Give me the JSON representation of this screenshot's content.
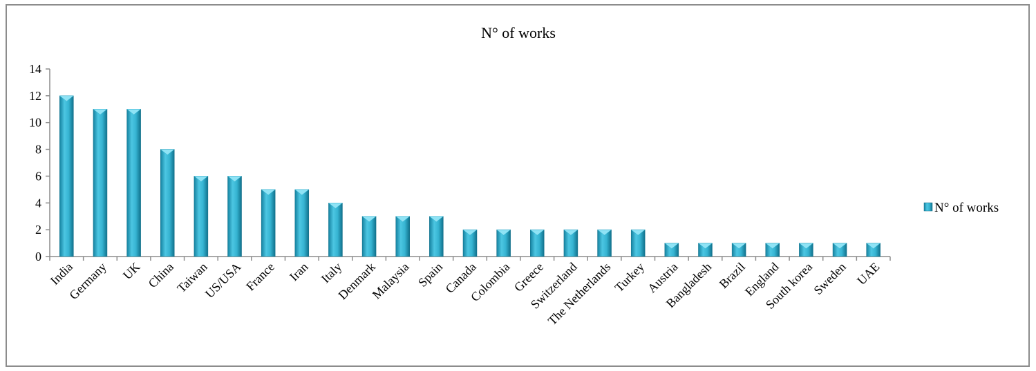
{
  "chart_data": {
    "type": "bar",
    "title": "N° of works",
    "xlabel": "",
    "ylabel": "",
    "ylim": [
      0,
      14
    ],
    "yticks": [
      0,
      2,
      4,
      6,
      8,
      10,
      12,
      14
    ],
    "grid": false,
    "legend": {
      "position": "right"
    },
    "categories": [
      "India",
      "Germany",
      "UK",
      "China",
      "Taiwan",
      "US/USA",
      "France",
      "Iran",
      "Italy",
      "Denmark",
      "Malaysia",
      "Spain",
      "Canada",
      "Colombia",
      "Greece",
      "Switzerland",
      "The Netherlands",
      "Turkey",
      "Austria",
      "Bangladesh",
      "Brazil",
      "England",
      "South korea",
      "Sweden",
      "UAE"
    ],
    "series": [
      {
        "name": "N° of works",
        "color": "#2aa6c4",
        "values": [
          12,
          11,
          11,
          8,
          6,
          6,
          5,
          5,
          4,
          3,
          3,
          3,
          2,
          2,
          2,
          2,
          2,
          2,
          1,
          1,
          1,
          1,
          1,
          1,
          1
        ]
      }
    ]
  }
}
